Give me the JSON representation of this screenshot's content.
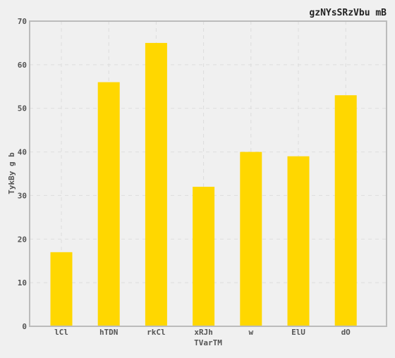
{
  "chart_data": {
    "type": "bar",
    "title": "gzNYsSRzVbu mB",
    "xlabel": "TVarTM",
    "ylabel": "TykBy  g b",
    "categories": [
      "lCl",
      "hTDN",
      "rkCl",
      "xRJh",
      "w",
      "ElU",
      "dO"
    ],
    "values": [
      17,
      56,
      65,
      32,
      40,
      39,
      53
    ],
    "ylim": [
      0,
      70
    ],
    "yticks": [
      "0",
      "10",
      "20",
      "30",
      "40",
      "50",
      "60",
      "70"
    ],
    "grid": true,
    "legend": "none",
    "colors": {
      "bar": "#ffd700",
      "background": "#f0f0f0",
      "plot_background": "#f0f0f0",
      "grid": "#dddddd",
      "axis": "#bbbbbb",
      "text": "#555555"
    }
  }
}
